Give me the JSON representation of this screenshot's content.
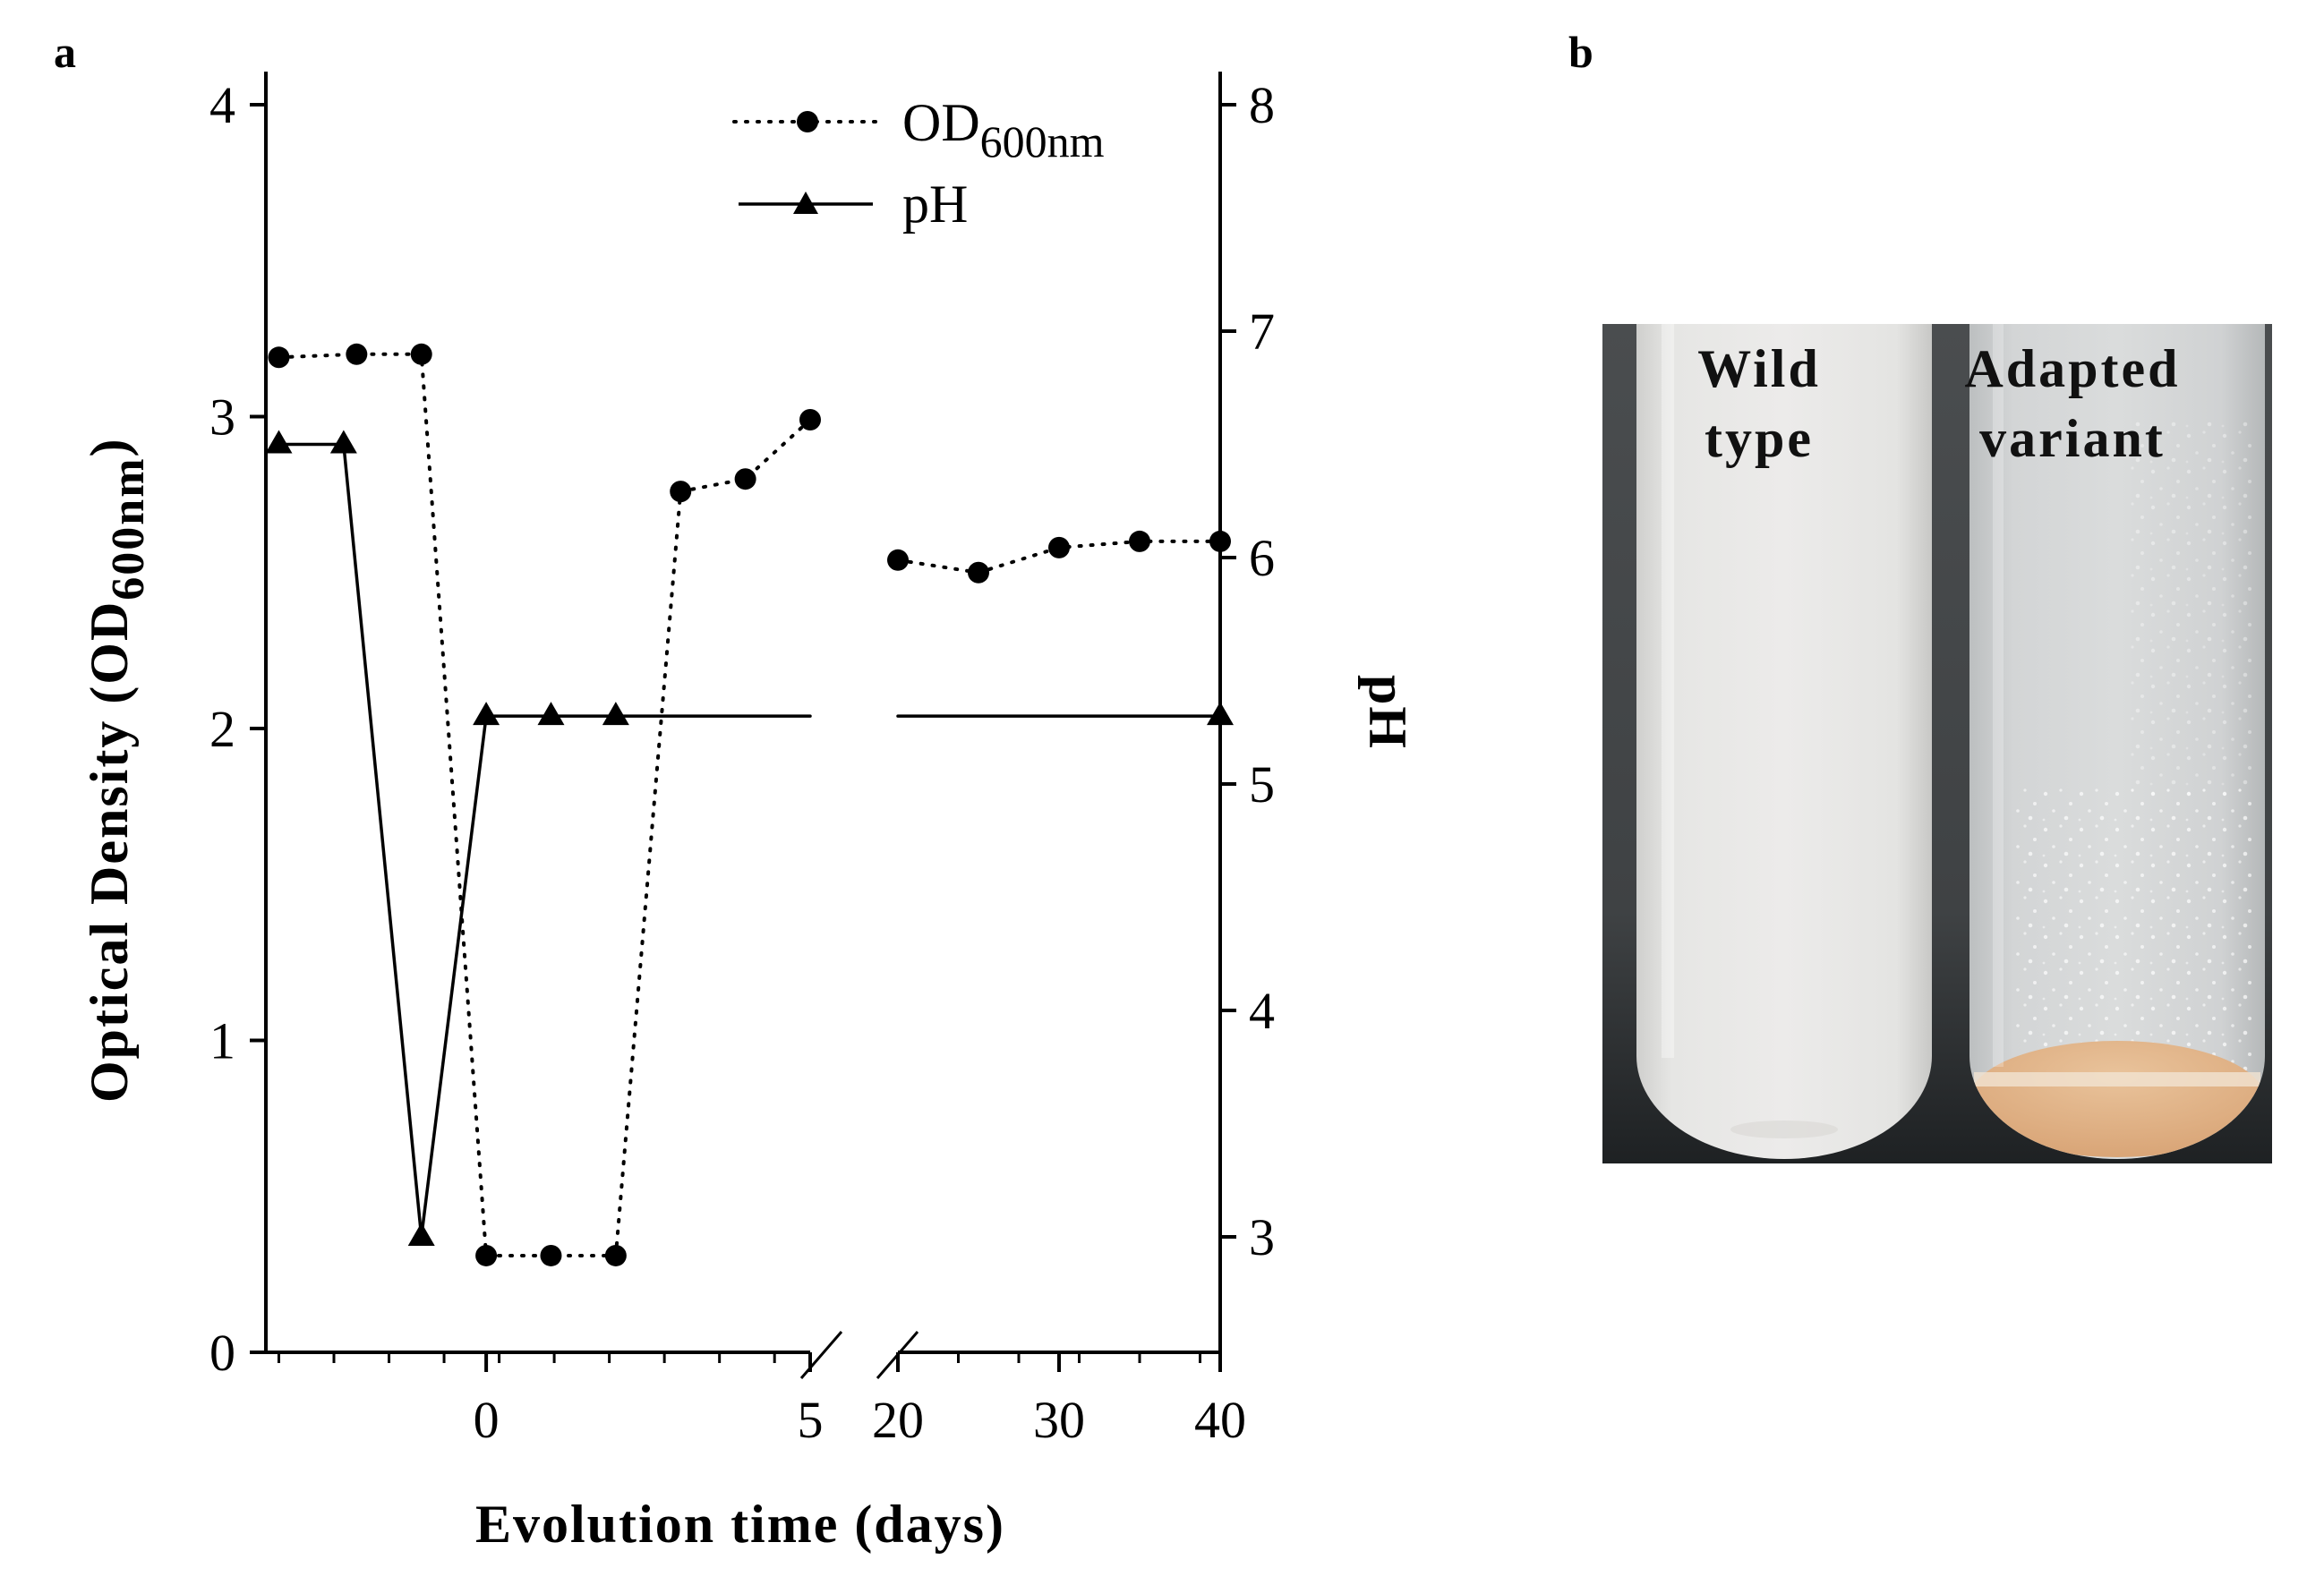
{
  "panels": {
    "a": "a",
    "b": "b"
  },
  "chart_data": {
    "type": "line",
    "xlabel": "Evolution time (days)",
    "ylabel": "Optical Density (OD",
    "ylabel_sub": "600nm",
    "ylabel_close": ")",
    "y2label": "pH",
    "ylim": [
      0,
      4
    ],
    "y2lim": [
      2.5,
      8
    ],
    "y_ticks": [
      "0",
      "1",
      "2",
      "3",
      "4"
    ],
    "y2_ticks": [
      "3",
      "4",
      "5",
      "6",
      "7",
      "8"
    ],
    "x_segments": [
      {
        "range": [
          -3.4,
          5
        ],
        "ticks": [
          0,
          5
        ],
        "tick_labels": [
          "0",
          "5"
        ],
        "minor_step": 0.85
      },
      {
        "range": [
          20,
          40
        ],
        "ticks": [
          20,
          30,
          40
        ],
        "tick_labels": [
          "20",
          "30",
          "40"
        ],
        "minor_step": 3.75
      }
    ],
    "series": [
      {
        "name": "OD",
        "name_sub": "600nm",
        "axis": "left",
        "style": "dotted",
        "marker": "circle",
        "segments": [
          [
            [
              -3.2,
              3.19
            ],
            [
              -2.0,
              3.2
            ],
            [
              -1.0,
              3.2
            ],
            [
              0.0,
              0.31
            ],
            [
              1.0,
              0.31
            ],
            [
              2.0,
              0.31
            ],
            [
              3.0,
              2.76
            ],
            [
              4.0,
              2.8
            ],
            [
              5.0,
              2.99
            ]
          ],
          [
            [
              20.0,
              2.54
            ],
            [
              25.0,
              2.5
            ],
            [
              30.0,
              2.58
            ],
            [
              35.0,
              2.6
            ],
            [
              40.0,
              2.6
            ]
          ]
        ]
      },
      {
        "name": "pH",
        "axis": "right",
        "style": "solid",
        "marker": "triangle",
        "segments": [
          [
            [
              -3.2,
              6.5
            ],
            [
              -2.2,
              6.5
            ],
            [
              -1.0,
              3.0
            ],
            [
              0.0,
              5.3
            ],
            [
              1.0,
              5.3
            ],
            [
              2.0,
              5.3
            ],
            [
              5.0,
              5.3
            ]
          ],
          [
            [
              20.0,
              5.3
            ],
            [
              40.0,
              5.3
            ]
          ]
        ],
        "marker_points": [
          [
            -3.2,
            6.5
          ],
          [
            -2.2,
            6.5
          ],
          [
            -1.0,
            3.0
          ],
          [
            0.0,
            5.3
          ],
          [
            1.0,
            5.3
          ],
          [
            2.0,
            5.3
          ],
          [
            40.0,
            5.3
          ]
        ]
      }
    ]
  },
  "photo": {
    "tube1_label": [
      "Wild",
      "type"
    ],
    "tube2_label": [
      "Adapted",
      "variant"
    ]
  }
}
